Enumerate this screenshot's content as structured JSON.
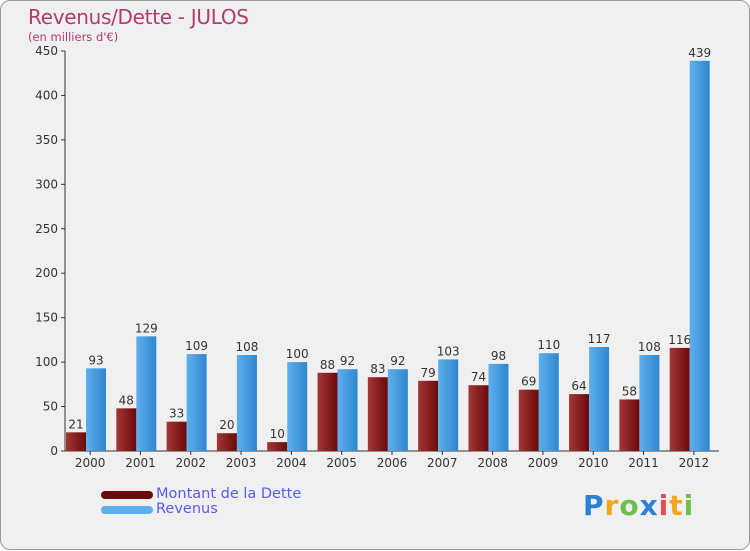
{
  "chart_data": {
    "type": "bar",
    "title": "Revenus/Dette - JULOS",
    "subtitle": "(en milliers d'€)",
    "categories": [
      "2000",
      "2001",
      "2002",
      "2003",
      "2004",
      "2005",
      "2006",
      "2007",
      "2008",
      "2009",
      "2010",
      "2011",
      "2012"
    ],
    "series": [
      {
        "name": "Montant de la Dette",
        "values": [
          21,
          48,
          33,
          20,
          10,
          88,
          83,
          79,
          74,
          69,
          64,
          58,
          116
        ],
        "color": "#6b0b0b",
        "color_light": "#a43535"
      },
      {
        "name": "Revenus",
        "values": [
          93,
          129,
          109,
          108,
          100,
          92,
          92,
          103,
          98,
          110,
          117,
          108,
          439
        ],
        "color": "#2f86cf",
        "color_light": "#5eb0ec"
      }
    ],
    "ylim": [
      0,
      450
    ],
    "yticks": [
      0,
      50,
      100,
      150,
      200,
      250,
      300,
      350,
      400,
      450
    ],
    "grid": false,
    "legend_position": "bottom-left"
  },
  "brand": {
    "letters": [
      "P",
      "r",
      "o",
      "x",
      "i",
      "t",
      "i"
    ]
  }
}
